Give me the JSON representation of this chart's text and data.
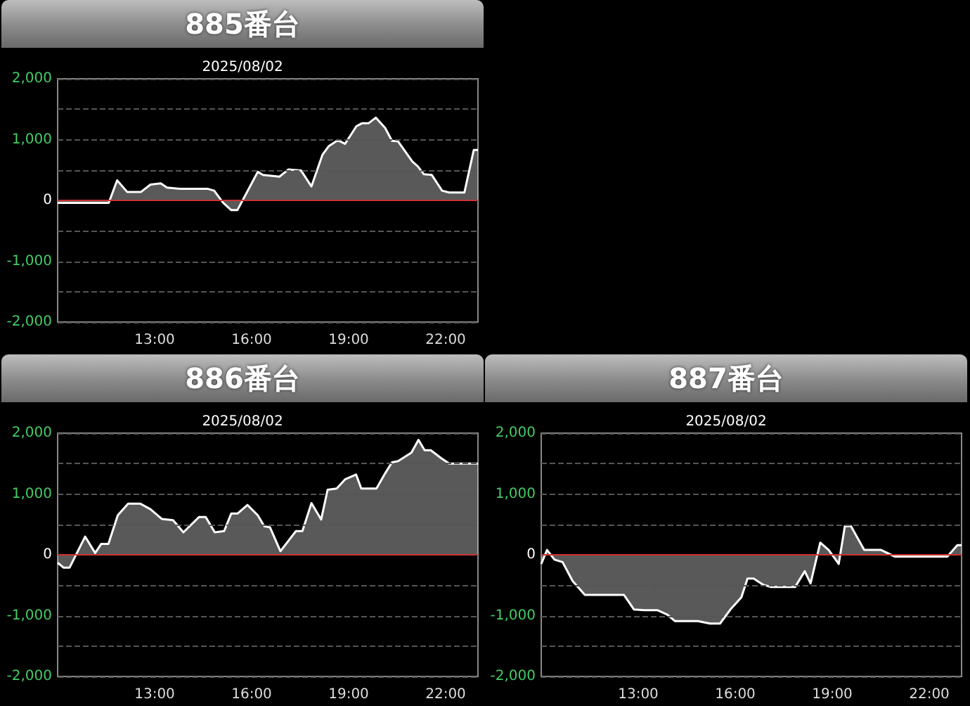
{
  "chart_data": [
    {
      "type": "area",
      "title": "885番台",
      "subtitle": "2025/08/02",
      "color": "#ffffff",
      "xlim": [
        10,
        23
      ],
      "xticks": [
        {
          "value": 13,
          "label": "13:00"
        },
        {
          "value": 16,
          "label": "16:00"
        },
        {
          "value": 19,
          "label": "19:00"
        },
        {
          "value": 22,
          "label": "22:00"
        }
      ],
      "ylim": [
        -2000,
        2000
      ],
      "yticks": [
        {
          "value": -2000,
          "label": "-2,000"
        },
        {
          "value": -1500,
          "label": null
        },
        {
          "value": -1000,
          "label": "-1,000"
        },
        {
          "value": -500,
          "label": null
        },
        {
          "value": 0,
          "label": "0"
        },
        {
          "value": 500,
          "label": null
        },
        {
          "value": 1000,
          "label": "1,000"
        },
        {
          "value": 1500,
          "label": null
        },
        {
          "value": 2000,
          "label": "2,000"
        }
      ],
      "grid": "y",
      "marker": "none",
      "ref_lines": [
        {
          "axis": "y",
          "value": 0,
          "color": "#cc3333"
        }
      ],
      "x": [
        10.0,
        11.58,
        11.84,
        12.15,
        12.58,
        12.87,
        13.19,
        13.38,
        13.82,
        14.65,
        14.84,
        15.12,
        15.37,
        15.56,
        16.19,
        16.35,
        16.86,
        17.14,
        17.53,
        17.85,
        18.19,
        18.38,
        18.67,
        18.89,
        19.24,
        19.42,
        19.62,
        19.84,
        20.13,
        20.34,
        20.53,
        20.97,
        21.14,
        21.33,
        21.57,
        21.89,
        22.11,
        22.58,
        22.87,
        23.0
      ],
      "values": [
        -40,
        -40,
        330,
        140,
        140,
        260,
        280,
        210,
        190,
        190,
        160,
        -40,
        -160,
        -160,
        470,
        420,
        390,
        510,
        490,
        230,
        750,
        890,
        990,
        930,
        1220,
        1270,
        1270,
        1360,
        1190,
        980,
        970,
        640,
        560,
        430,
        420,
        160,
        130,
        130,
        830,
        830
      ]
    },
    {
      "type": "area",
      "title": "886番台",
      "subtitle": "2025/08/02",
      "color": "#ffffff",
      "xlim": [
        10,
        23
      ],
      "xticks": [
        {
          "value": 13,
          "label": "13:00"
        },
        {
          "value": 16,
          "label": "16:00"
        },
        {
          "value": 19,
          "label": "19:00"
        },
        {
          "value": 22,
          "label": "22:00"
        }
      ],
      "ylim": [
        -2000,
        2000
      ],
      "yticks": [
        {
          "value": -2000,
          "label": "-2,000"
        },
        {
          "value": -1500,
          "label": null
        },
        {
          "value": -1000,
          "label": "-1,000"
        },
        {
          "value": -500,
          "label": null
        },
        {
          "value": 0,
          "label": "0"
        },
        {
          "value": 500,
          "label": null
        },
        {
          "value": 1000,
          "label": "1,000"
        },
        {
          "value": 1500,
          "label": null
        },
        {
          "value": 2000,
          "label": "2,000"
        }
      ],
      "grid": "y",
      "marker": "none",
      "ref_lines": [
        {
          "axis": "y",
          "value": 0,
          "color": "#cc3333"
        }
      ],
      "x": [
        10.0,
        10.18,
        10.37,
        10.85,
        11.16,
        11.35,
        11.57,
        11.86,
        12.18,
        12.56,
        12.87,
        13.22,
        13.57,
        13.89,
        14.37,
        14.58,
        14.86,
        15.15,
        15.37,
        15.57,
        15.87,
        16.19,
        16.39,
        16.57,
        16.89,
        17.37,
        17.57,
        17.85,
        18.15,
        18.35,
        18.63,
        18.89,
        19.23,
        19.39,
        19.86,
        20.13,
        20.34,
        20.53,
        20.94,
        21.16,
        21.35,
        21.54,
        21.86,
        22.11,
        23.0
      ],
      "values": [
        -130,
        -210,
        -210,
        300,
        30,
        180,
        180,
        650,
        840,
        840,
        750,
        590,
        570,
        370,
        620,
        620,
        370,
        390,
        680,
        680,
        820,
        650,
        470,
        450,
        60,
        390,
        390,
        850,
        580,
        1070,
        1090,
        1240,
        1320,
        1090,
        1090,
        1340,
        1520,
        1540,
        1680,
        1890,
        1720,
        1720,
        1590,
        1500,
        1500
      ]
    },
    {
      "type": "area",
      "title": "887番台",
      "subtitle": "2025/08/02",
      "color": "#ffffff",
      "xlim": [
        10,
        23
      ],
      "xticks": [
        {
          "value": 13,
          "label": "13:00"
        },
        {
          "value": 16,
          "label": "16:00"
        },
        {
          "value": 19,
          "label": "19:00"
        },
        {
          "value": 22,
          "label": "22:00"
        }
      ],
      "ylim": [
        -2000,
        2000
      ],
      "yticks": [
        {
          "value": -2000,
          "label": "-2,000"
        },
        {
          "value": -1500,
          "label": null
        },
        {
          "value": -1000,
          "label": "-1,000"
        },
        {
          "value": -500,
          "label": null
        },
        {
          "value": 0,
          "label": "0"
        },
        {
          "value": 500,
          "label": null
        },
        {
          "value": 1000,
          "label": "1,000"
        },
        {
          "value": 1500,
          "label": null
        },
        {
          "value": 2000,
          "label": "2,000"
        }
      ],
      "grid": "y",
      "marker": "none",
      "ref_lines": [
        {
          "axis": "y",
          "value": 0,
          "color": "#cc3333"
        }
      ],
      "x": [
        10.0,
        10.18,
        10.41,
        10.66,
        10.97,
        11.35,
        11.8,
        12.56,
        12.87,
        13.19,
        13.59,
        13.89,
        14.14,
        14.84,
        15.22,
        15.53,
        15.85,
        16.19,
        16.38,
        16.57,
        16.86,
        17.11,
        17.85,
        18.15,
        18.33,
        18.63,
        18.89,
        19.2,
        19.39,
        19.58,
        19.99,
        20.51,
        20.94,
        22.56,
        22.87,
        23.0
      ],
      "values": [
        -150,
        80,
        -80,
        -120,
        -430,
        -660,
        -660,
        -660,
        -900,
        -910,
        -910,
        -980,
        -1090,
        -1090,
        -1130,
        -1130,
        -900,
        -700,
        -390,
        -390,
        -490,
        -530,
        -530,
        -270,
        -470,
        200,
        80,
        -150,
        470,
        470,
        80,
        80,
        -30,
        -30,
        160,
        160
      ]
    }
  ]
}
